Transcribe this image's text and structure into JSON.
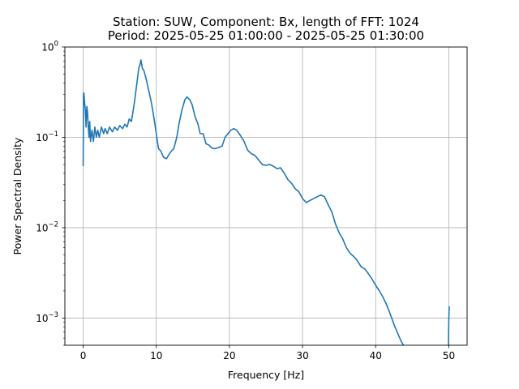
{
  "chart_data": {
    "type": "line",
    "title_line1": "Station: SUW, Component: Bx, length of FFT: 1024",
    "title_line2": "Period: 2025-05-25 01:00:00 - 2025-05-25 01:30:00",
    "xlabel": "Frequency [Hz]",
    "ylabel": "Power Spectral Density",
    "xscale": "linear",
    "yscale": "log",
    "xlim": [
      -2.5,
      52.5
    ],
    "ylim": [
      0.0005,
      1
    ],
    "grid": true,
    "x_ticks": [
      {
        "value": 0,
        "label": "0"
      },
      {
        "value": 10,
        "label": "10"
      },
      {
        "value": 20,
        "label": "20"
      },
      {
        "value": 30,
        "label": "30"
      },
      {
        "value": 40,
        "label": "40"
      },
      {
        "value": 50,
        "label": "50"
      }
    ],
    "y_ticks": [
      {
        "value": 0.001,
        "base": "10",
        "exp": "−3"
      },
      {
        "value": 0.01,
        "base": "10",
        "exp": "−2"
      },
      {
        "value": 0.1,
        "base": "10",
        "exp": "−1"
      },
      {
        "value": 1,
        "base": "10",
        "exp": "0"
      }
    ],
    "series": [
      {
        "color": "#1f77b4",
        "points": [
          [
            0.0,
            0.048
          ],
          [
            0.05,
            0.3
          ],
          [
            0.1,
            0.31
          ],
          [
            0.2,
            0.24
          ],
          [
            0.3,
            0.2
          ],
          [
            0.4,
            0.13
          ],
          [
            0.5,
            0.22
          ],
          [
            0.6,
            0.19
          ],
          [
            0.7,
            0.13
          ],
          [
            0.8,
            0.1
          ],
          [
            0.9,
            0.15
          ],
          [
            1.0,
            0.09
          ],
          [
            1.2,
            0.12
          ],
          [
            1.4,
            0.09
          ],
          [
            1.6,
            0.13
          ],
          [
            1.8,
            0.1
          ],
          [
            2.0,
            0.12
          ],
          [
            2.2,
            0.1
          ],
          [
            2.5,
            0.13
          ],
          [
            2.8,
            0.11
          ],
          [
            3.0,
            0.125
          ],
          [
            3.3,
            0.11
          ],
          [
            3.6,
            0.13
          ],
          [
            4.0,
            0.115
          ],
          [
            4.3,
            0.13
          ],
          [
            4.7,
            0.12
          ],
          [
            5.0,
            0.135
          ],
          [
            5.4,
            0.125
          ],
          [
            5.7,
            0.14
          ],
          [
            6.0,
            0.13
          ],
          [
            6.3,
            0.16
          ],
          [
            6.6,
            0.15
          ],
          [
            7.0,
            0.24
          ],
          [
            7.3,
            0.37
          ],
          [
            7.6,
            0.58
          ],
          [
            7.8,
            0.65
          ],
          [
            7.9,
            0.72
          ],
          [
            8.1,
            0.58
          ],
          [
            8.3,
            0.55
          ],
          [
            8.6,
            0.45
          ],
          [
            9.0,
            0.32
          ],
          [
            9.3,
            0.25
          ],
          [
            9.6,
            0.18
          ],
          [
            10.0,
            0.11
          ],
          [
            10.3,
            0.075
          ],
          [
            10.6,
            0.071
          ],
          [
            11.0,
            0.06
          ],
          [
            11.4,
            0.058
          ],
          [
            11.8,
            0.066
          ],
          [
            12.1,
            0.071
          ],
          [
            12.4,
            0.075
          ],
          [
            12.8,
            0.1
          ],
          [
            13.1,
            0.14
          ],
          [
            13.5,
            0.2
          ],
          [
            13.9,
            0.26
          ],
          [
            14.2,
            0.28
          ],
          [
            14.6,
            0.26
          ],
          [
            14.9,
            0.23
          ],
          [
            15.3,
            0.17
          ],
          [
            15.7,
            0.14
          ],
          [
            16.0,
            0.11
          ],
          [
            16.4,
            0.11
          ],
          [
            16.8,
            0.085
          ],
          [
            17.2,
            0.082
          ],
          [
            17.6,
            0.076
          ],
          [
            18.0,
            0.075
          ],
          [
            18.5,
            0.077
          ],
          [
            19.0,
            0.08
          ],
          [
            19.4,
            0.1
          ],
          [
            19.8,
            0.11
          ],
          [
            20.2,
            0.12
          ],
          [
            20.6,
            0.125
          ],
          [
            21.0,
            0.12
          ],
          [
            21.5,
            0.105
          ],
          [
            22.0,
            0.09
          ],
          [
            22.5,
            0.072
          ],
          [
            23.0,
            0.066
          ],
          [
            23.5,
            0.063
          ],
          [
            24.0,
            0.056
          ],
          [
            24.5,
            0.05
          ],
          [
            25.0,
            0.049
          ],
          [
            25.5,
            0.05
          ],
          [
            26.0,
            0.048
          ],
          [
            26.5,
            0.045
          ],
          [
            27.0,
            0.046
          ],
          [
            27.5,
            0.04
          ],
          [
            28.0,
            0.034
          ],
          [
            28.5,
            0.031
          ],
          [
            29.0,
            0.027
          ],
          [
            29.5,
            0.025
          ],
          [
            30.0,
            0.021
          ],
          [
            30.5,
            0.019
          ],
          [
            31.0,
            0.02
          ],
          [
            31.5,
            0.021
          ],
          [
            32.0,
            0.022
          ],
          [
            32.5,
            0.023
          ],
          [
            33.0,
            0.022
          ],
          [
            33.5,
            0.018
          ],
          [
            34.0,
            0.015
          ],
          [
            34.5,
            0.011
          ],
          [
            35.0,
            0.0088
          ],
          [
            35.5,
            0.0075
          ],
          [
            36.0,
            0.006
          ],
          [
            36.5,
            0.0052
          ],
          [
            37.0,
            0.0048
          ],
          [
            37.5,
            0.0043
          ],
          [
            38.0,
            0.0037
          ],
          [
            38.5,
            0.0035
          ],
          [
            39.0,
            0.0031
          ],
          [
            39.5,
            0.0027
          ],
          [
            40.0,
            0.0023
          ],
          [
            40.5,
            0.002
          ],
          [
            41.0,
            0.0017
          ],
          [
            41.5,
            0.0014
          ],
          [
            42.0,
            0.0011
          ],
          [
            42.5,
            0.00085
          ],
          [
            43.0,
            0.00068
          ],
          [
            43.5,
            0.00055
          ],
          [
            43.8,
            0.0005
          ]
        ]
      },
      {
        "color": "#1f77b4",
        "points": [
          [
            49.95,
            0.0005
          ],
          [
            50.0,
            0.00095
          ],
          [
            50.05,
            0.00135
          ]
        ]
      }
    ]
  }
}
